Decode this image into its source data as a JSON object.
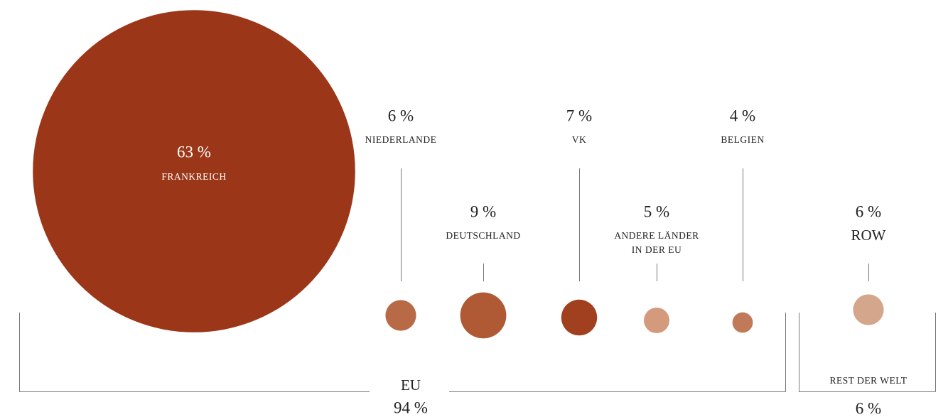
{
  "chart_data": {
    "type": "bubble",
    "categories": [
      "FRANKREICH",
      "NIEDERLANDE",
      "DEUTSCHLAND",
      "VK",
      "ANDERE LÄNDER\nIN DER EU",
      "BELGIEN",
      "ROW"
    ],
    "values": [
      63,
      6,
      9,
      7,
      5,
      4,
      6
    ],
    "value_labels": [
      "63 %",
      "6 %",
      "9 %",
      "7 %",
      "5 %",
      "4 %",
      "6 %"
    ],
    "colors": [
      "#9b3718",
      "#b86a47",
      "#b05a35",
      "#a0401f",
      "#d39a7c",
      "#c07a5a",
      "#d4a68b"
    ],
    "groups": [
      {
        "name": "EU",
        "value": 94,
        "value_label": "94 %"
      },
      {
        "name": "REST DER WELT",
        "value": 6,
        "value_label": "6 %"
      }
    ]
  }
}
